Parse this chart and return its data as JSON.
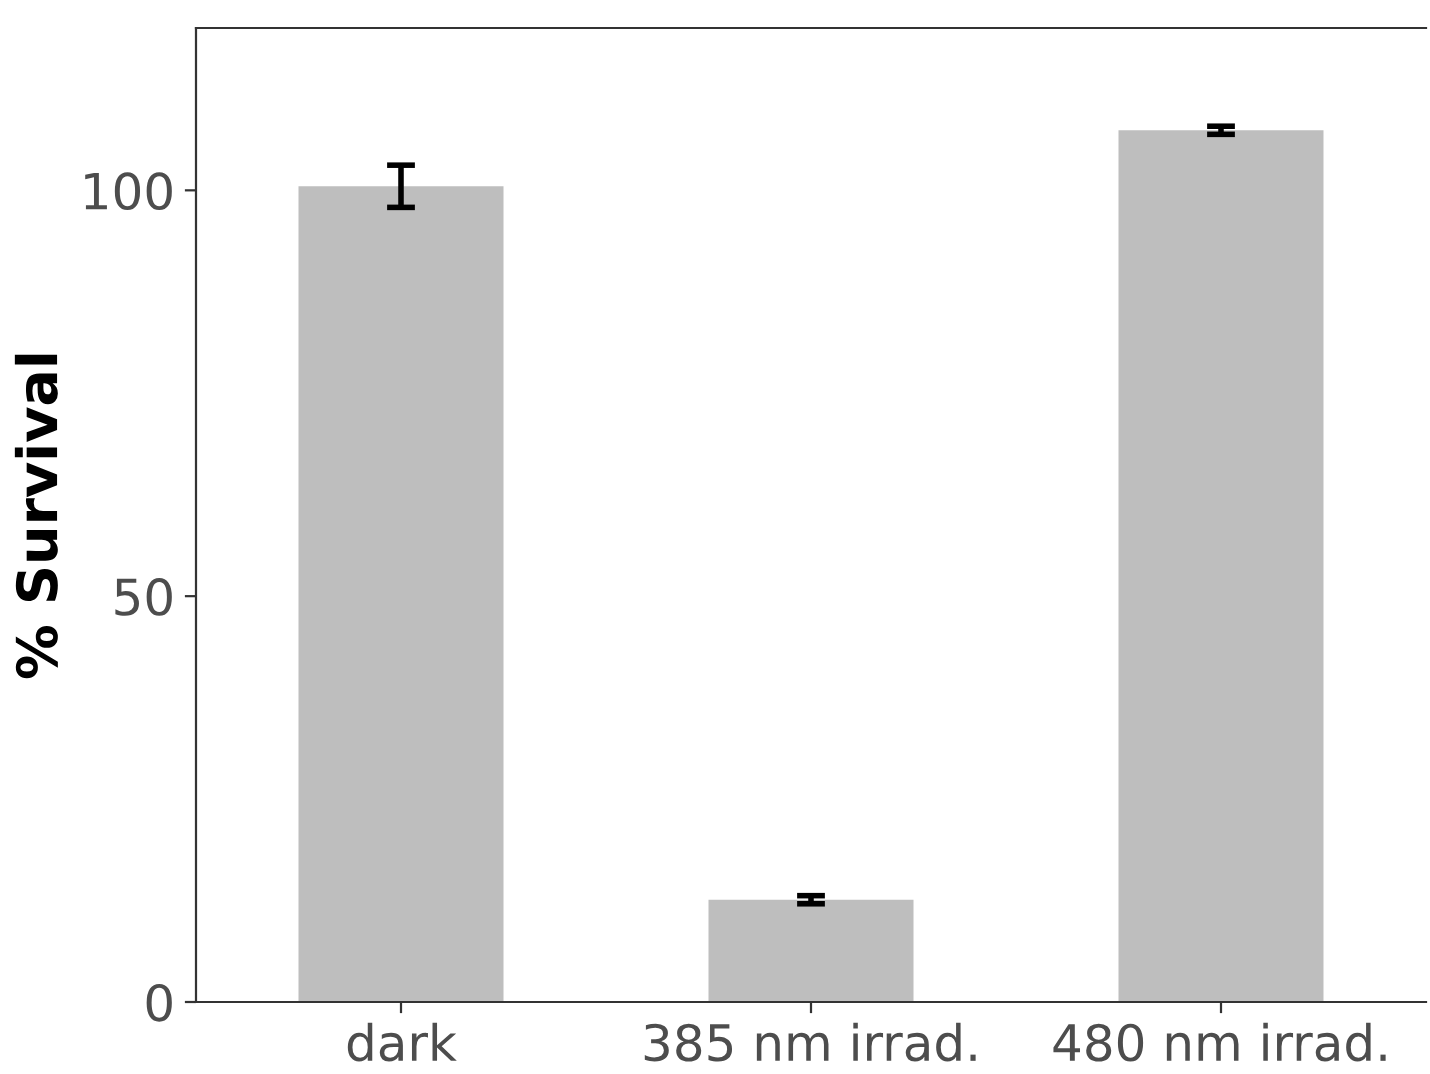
{
  "chart_data": {
    "type": "bar",
    "ylabel": "% Survival",
    "categories": [
      "dark",
      "385 nm irrad.",
      "480 nm irrad."
    ],
    "values": [
      100.5,
      12.6,
      107.4
    ],
    "errors": [
      2.6,
      0.5,
      0.5
    ],
    "color": "#bebebe",
    "ylim": [
      0,
      120
    ],
    "yticks": [
      0,
      50,
      100
    ],
    "grid": false,
    "legend": false
  }
}
